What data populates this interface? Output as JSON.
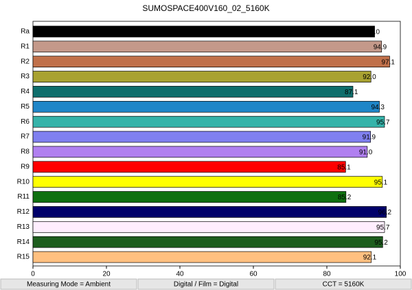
{
  "chart_data": {
    "type": "barh",
    "title": "SUMOSPACE400V160_02_5160K",
    "categories": [
      "Ra",
      "R1",
      "R2",
      "R3",
      "R4",
      "R5",
      "R6",
      "R7",
      "R8",
      "R9",
      "R10",
      "R11",
      "R12",
      "R13",
      "R14",
      "R15"
    ],
    "values": [
      93.0,
      94.9,
      97.1,
      92.0,
      87.1,
      94.3,
      95.7,
      91.9,
      91.0,
      85.1,
      95.1,
      85.2,
      96.2,
      95.7,
      95.2,
      92.1
    ],
    "value_labels": [
      "93.0",
      "94.9",
      "97.1",
      "92.0",
      "87.1",
      "94.3",
      "95.7",
      "91.9",
      "91.0",
      "85.1",
      "95.1",
      "85.2",
      "96.2",
      "95.7",
      "95.2",
      "92.1"
    ],
    "colors": [
      "#000000",
      "#c4998a",
      "#c0704a",
      "#a9a231",
      "#0f6e6c",
      "#1f86c8",
      "#36b3aa",
      "#8080f0",
      "#b080f0",
      "#ff0000",
      "#ffff00",
      "#0f7010",
      "#00006a",
      "#ffeefe",
      "#1e5e1e",
      "#ffc080"
    ],
    "xlim": [
      0,
      100
    ],
    "xticks": [
      0,
      20,
      40,
      60,
      80,
      100
    ],
    "grid": false,
    "footer": [
      "Measuring Mode = Ambient",
      "Digital / Film = Digital",
      "CCT = 5160K"
    ]
  }
}
